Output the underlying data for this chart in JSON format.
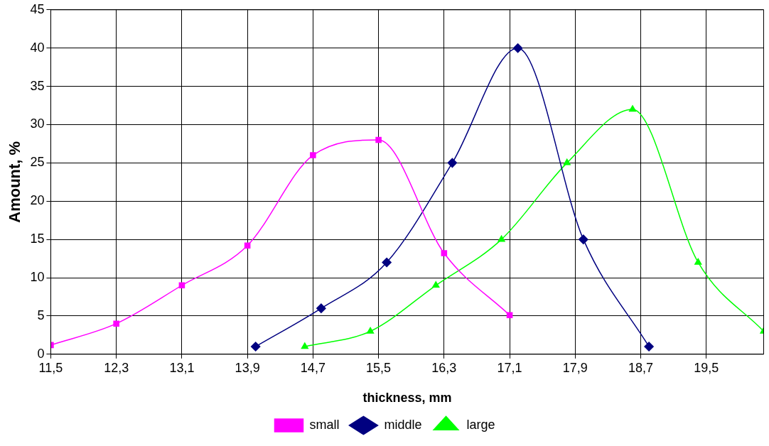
{
  "chart_data": {
    "type": "line",
    "xlabel": "thickness, mm",
    "ylabel": "Amount, %",
    "xlim": [
      11.5,
      20.2
    ],
    "ylim": [
      0,
      45
    ],
    "xticks": [
      {
        "value": 11.5,
        "label": "11,5"
      },
      {
        "value": 12.3,
        "label": "12,3"
      },
      {
        "value": 13.1,
        "label": "13,1"
      },
      {
        "value": 13.9,
        "label": "13,9"
      },
      {
        "value": 14.7,
        "label": "14,7"
      },
      {
        "value": 15.5,
        "label": "15,5"
      },
      {
        "value": 16.3,
        "label": "16,3"
      },
      {
        "value": 17.1,
        "label": "17,1"
      },
      {
        "value": 17.9,
        "label": "17,9"
      },
      {
        "value": 18.7,
        "label": "18,7"
      },
      {
        "value": 19.5,
        "label": "19,5"
      }
    ],
    "yticks": [
      0,
      5,
      10,
      15,
      20,
      25,
      30,
      35,
      40,
      45
    ],
    "grid": true,
    "legend": "bottom",
    "line_style": "solid",
    "series": [
      {
        "name": "small",
        "color": "#ff00ff",
        "marker": "square",
        "x": [
          11.5,
          12.3,
          13.1,
          13.9,
          14.7,
          15.5,
          16.3,
          17.1
        ],
        "values": [
          1.2,
          4,
          9,
          14.2,
          26,
          28,
          13.2,
          5.1
        ]
      },
      {
        "name": "middle",
        "color": "#000080",
        "marker": "diamond",
        "x": [
          14.0,
          14.8,
          15.6,
          16.4,
          17.2,
          18.0,
          18.8
        ],
        "values": [
          1,
          6,
          12,
          25,
          40,
          15,
          1
        ]
      },
      {
        "name": "large",
        "color": "#00ff00",
        "marker": "triangle",
        "x": [
          14.6,
          15.4,
          16.2,
          17.0,
          17.8,
          18.6,
          19.4,
          20.2
        ],
        "values": [
          1,
          3,
          9,
          15,
          25,
          32,
          12,
          3
        ]
      }
    ]
  }
}
